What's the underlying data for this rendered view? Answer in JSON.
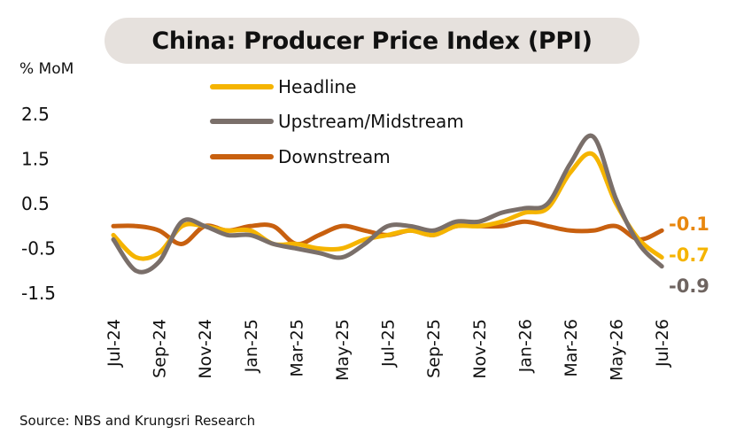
{
  "chart_data": {
    "type": "line",
    "title": "China: Producer Price Index (PPI)",
    "ylabel": "% MoM",
    "ylim": [
      -1.5,
      2.5
    ],
    "yticks": [
      "2.5",
      "1.5",
      "0.5",
      "-0.5",
      "-1.5"
    ],
    "ytick_values": [
      2.5,
      1.5,
      0.5,
      -0.5,
      -1.5
    ],
    "x": [
      "Jul-24",
      "Aug-24",
      "Sep-24",
      "Oct-24",
      "Nov-24",
      "Dec-24",
      "Jan-25",
      "Feb-25",
      "Mar-25",
      "Apr-25",
      "May-25",
      "Jun-25",
      "Jul-25",
      "Aug-25",
      "Sep-25",
      "Oct-25",
      "Nov-25",
      "Dec-25",
      "Jan-26",
      "Feb-26",
      "Mar-26",
      "Apr-26",
      "May-26",
      "Jun-26",
      "Jul-26"
    ],
    "xtick_labels": [
      "Jul-24",
      "Sep-24",
      "Nov-24",
      "Jan-25",
      "Mar-25",
      "May-25",
      "Jul-25",
      "Sep-25",
      "Nov-25",
      "Jan-26",
      "Mar-26",
      "May-26",
      "Jul-26"
    ],
    "series": [
      {
        "name": "Headline",
        "color": "#f5b400",
        "values": [
          -0.2,
          -0.7,
          -0.6,
          0.0,
          0.0,
          -0.1,
          -0.1,
          -0.4,
          -0.4,
          -0.5,
          -0.5,
          -0.3,
          -0.2,
          -0.1,
          -0.2,
          0.0,
          0.0,
          0.1,
          0.3,
          0.4,
          1.2,
          1.6,
          0.5,
          -0.3,
          -0.7
        ]
      },
      {
        "name": "Upstream/Midstream",
        "color": "#7a6f6a",
        "values": [
          -0.3,
          -1.0,
          -0.8,
          0.1,
          0.0,
          -0.2,
          -0.2,
          -0.4,
          -0.5,
          -0.6,
          -0.7,
          -0.4,
          0.0,
          0.0,
          -0.1,
          0.1,
          0.1,
          0.3,
          0.4,
          0.5,
          1.4,
          2.0,
          0.6,
          -0.4,
          -0.9
        ]
      },
      {
        "name": "Downstream",
        "color": "#c8600f",
        "values": [
          0.0,
          0.0,
          -0.1,
          -0.4,
          0.0,
          -0.1,
          0.0,
          0.0,
          -0.4,
          -0.2,
          0.0,
          -0.1,
          -0.2,
          -0.1,
          -0.2,
          0.0,
          0.0,
          0.0,
          0.1,
          0.0,
          -0.1,
          -0.1,
          0.0,
          -0.3,
          -0.1
        ]
      }
    ],
    "end_labels": [
      {
        "text": "-0.1",
        "color": "#e8870e"
      },
      {
        "text": "-0.7",
        "color": "#f5b400"
      },
      {
        "text": "-0.9",
        "color": "#6e6460"
      }
    ],
    "legend_position": "top-left",
    "grid": false
  },
  "source": "Source: NBS and Krungsri Research"
}
